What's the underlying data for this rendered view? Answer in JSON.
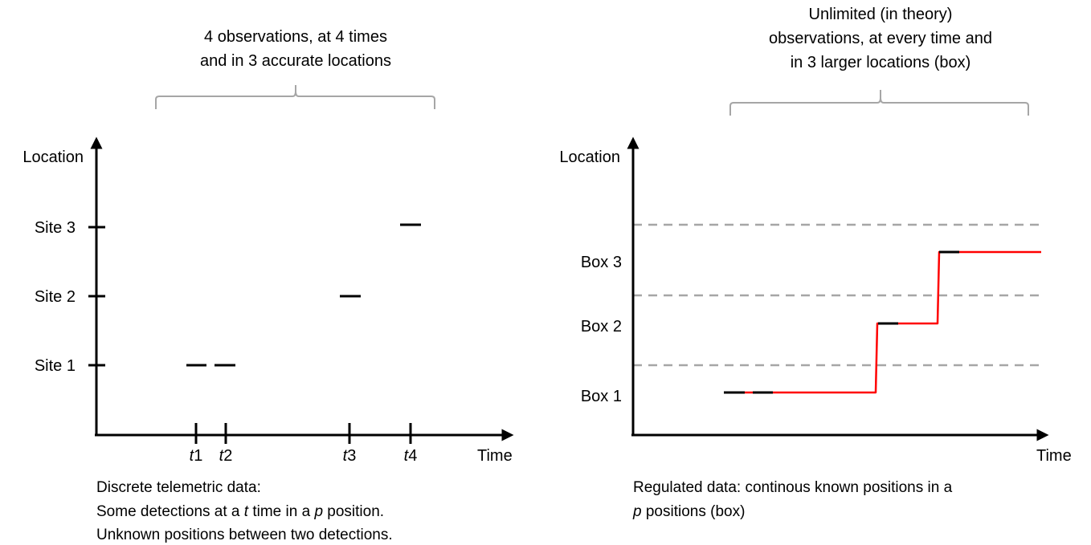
{
  "left_panel": {
    "header_line1": "4 observations, at 4 times",
    "header_line2": "and in 3 accurate locations",
    "y_axis_label": "Location",
    "x_axis_label": "Time",
    "sites": [
      "Site 3",
      "Site 2",
      "Site 1"
    ],
    "times": [
      "1",
      "2",
      "3",
      "4"
    ],
    "time_prefix": "t",
    "caption_line1": "Discrete telemetric data:",
    "caption_line2_a": "Some detections at a ",
    "caption_line2_t": "t",
    "caption_line2_b": " time in a ",
    "caption_line2_p": "p",
    "caption_line2_c": " position.",
    "caption_line3": "Unknown positions between two detections."
  },
  "right_panel": {
    "header_line1": "Unlimited (in theory)",
    "header_line2": "observations, at every time and",
    "header_line3": "in 3 larger locations (box)",
    "y_axis_label": "Location",
    "x_axis_label": "Time",
    "boxes": [
      "Box 3",
      "Box 2",
      "Box 1"
    ],
    "caption_line1": "Regulated data: continous known positions in a",
    "caption_line2_p": "p",
    "caption_line2_b": " positions (box)"
  },
  "colors": {
    "axis": "#000000",
    "bracket": "#a6a6a6",
    "dashed_boundary": "#a6a6a6",
    "trajectory": "#ff0000",
    "detection": "#000000"
  }
}
